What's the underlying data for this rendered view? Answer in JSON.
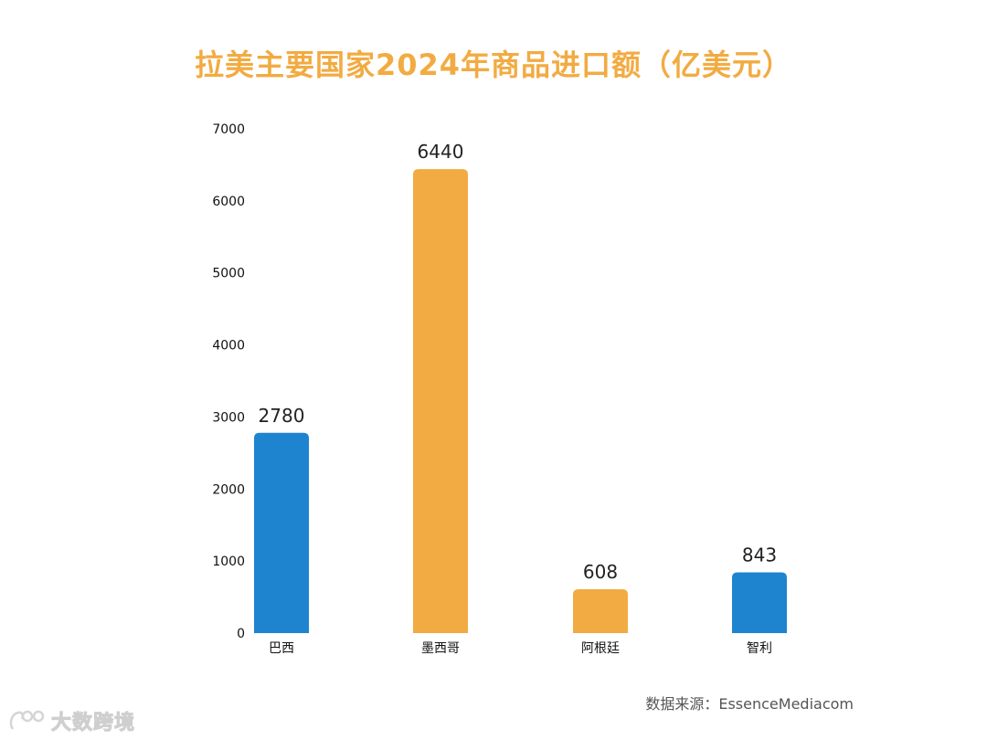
{
  "chart_data": {
    "type": "bar",
    "title": "拉美主要国家2024年商品进口额（亿美元）",
    "categories": [
      "巴西",
      "墨西哥",
      "阿根廷",
      "智利"
    ],
    "values": [
      2780,
      6440,
      608,
      843
    ],
    "bar_colors": [
      "#1f84d0",
      "#f2ab42",
      "#f2ab42",
      "#1f84d0"
    ],
    "ylim": [
      0,
      7000
    ],
    "yticks": [
      0,
      1000,
      2000,
      3000,
      4000,
      5000,
      6000,
      7000
    ],
    "xlabel": "",
    "ylabel": "",
    "grid": false,
    "legend": "none"
  },
  "source": "数据来源：EssenceMediacom",
  "watermark": {
    "text": "大数跨境",
    "logo_icon": "bigdata-logo-icon"
  },
  "colors": {
    "title": "#f2ab42",
    "blue": "#1f84d0",
    "orange": "#f2ab42"
  }
}
